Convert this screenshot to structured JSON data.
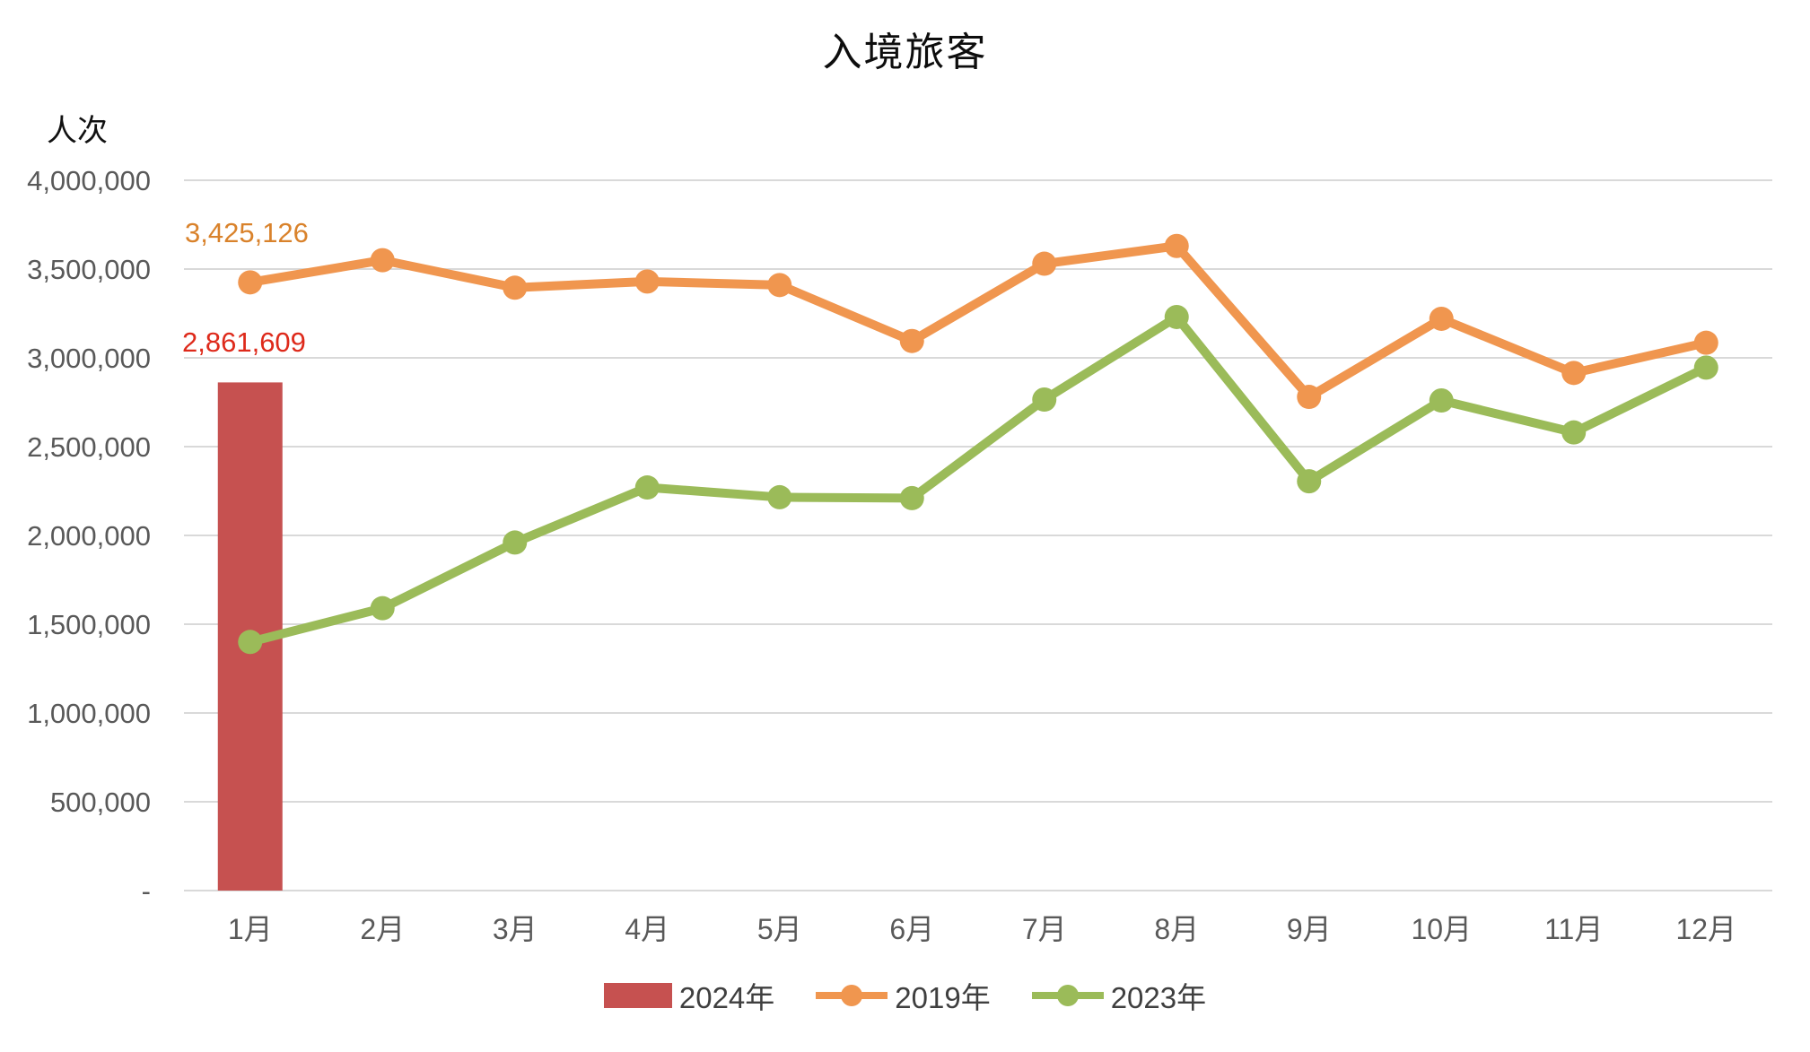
{
  "chart": {
    "title": "入境旅客",
    "unit_label": "人次",
    "annotations": {
      "orange_value": "3,425,126",
      "red_value": "2,861,609",
      "orange_color": "#D9822B",
      "red_color": "#DE2A1B"
    }
  },
  "legend": {
    "items": [
      {
        "label": "2024年",
        "type": "bar",
        "color": "#C65150"
      },
      {
        "label": "2019年",
        "type": "line",
        "color": "#F0964F"
      },
      {
        "label": "2023年",
        "type": "line",
        "color": "#9BBB59"
      }
    ],
    "position": "bottom"
  },
  "chart_data": {
    "type": "bar",
    "subtype": "bar + line combo",
    "title": "入境旅客",
    "ylabel": "人次",
    "xlabel": "",
    "grid": true,
    "legend_position": "bottom",
    "ylim": [
      0,
      4000000
    ],
    "ytick_step": 500000,
    "yticks": [
      {
        "v": 4000000,
        "label": "4,000,000"
      },
      {
        "v": 3500000,
        "label": "3,500,000"
      },
      {
        "v": 3000000,
        "label": "3,000,000"
      },
      {
        "v": 2500000,
        "label": "2,500,000"
      },
      {
        "v": 2000000,
        "label": "2,000,000"
      },
      {
        "v": 1500000,
        "label": "1,500,000"
      },
      {
        "v": 1000000,
        "label": "1,000,000"
      },
      {
        "v": 500000,
        "label": "500,000"
      },
      {
        "v": 0,
        "label": "-"
      }
    ],
    "categories": [
      "1月",
      "2月",
      "3月",
      "4月",
      "5月",
      "6月",
      "7月",
      "8月",
      "9月",
      "10月",
      "11月",
      "12月"
    ],
    "series": [
      {
        "name": "2024年",
        "type": "bar",
        "color": "#C65150",
        "values": [
          2861609,
          null,
          null,
          null,
          null,
          null,
          null,
          null,
          null,
          null,
          null,
          null
        ],
        "data_label": "2,861,609"
      },
      {
        "name": "2019年",
        "type": "line",
        "color": "#F0964F",
        "values": [
          3425126,
          3550000,
          3395000,
          3430000,
          3410000,
          3095000,
          3530000,
          3630000,
          2780000,
          3220000,
          2915000,
          3085000
        ],
        "data_label": "3,425,126"
      },
      {
        "name": "2023年",
        "type": "line",
        "color": "#9BBB59",
        "values": [
          1400000,
          1590000,
          1960000,
          2270000,
          2215000,
          2210000,
          2765000,
          3230000,
          2305000,
          2760000,
          2580000,
          2945000
        ]
      }
    ]
  }
}
